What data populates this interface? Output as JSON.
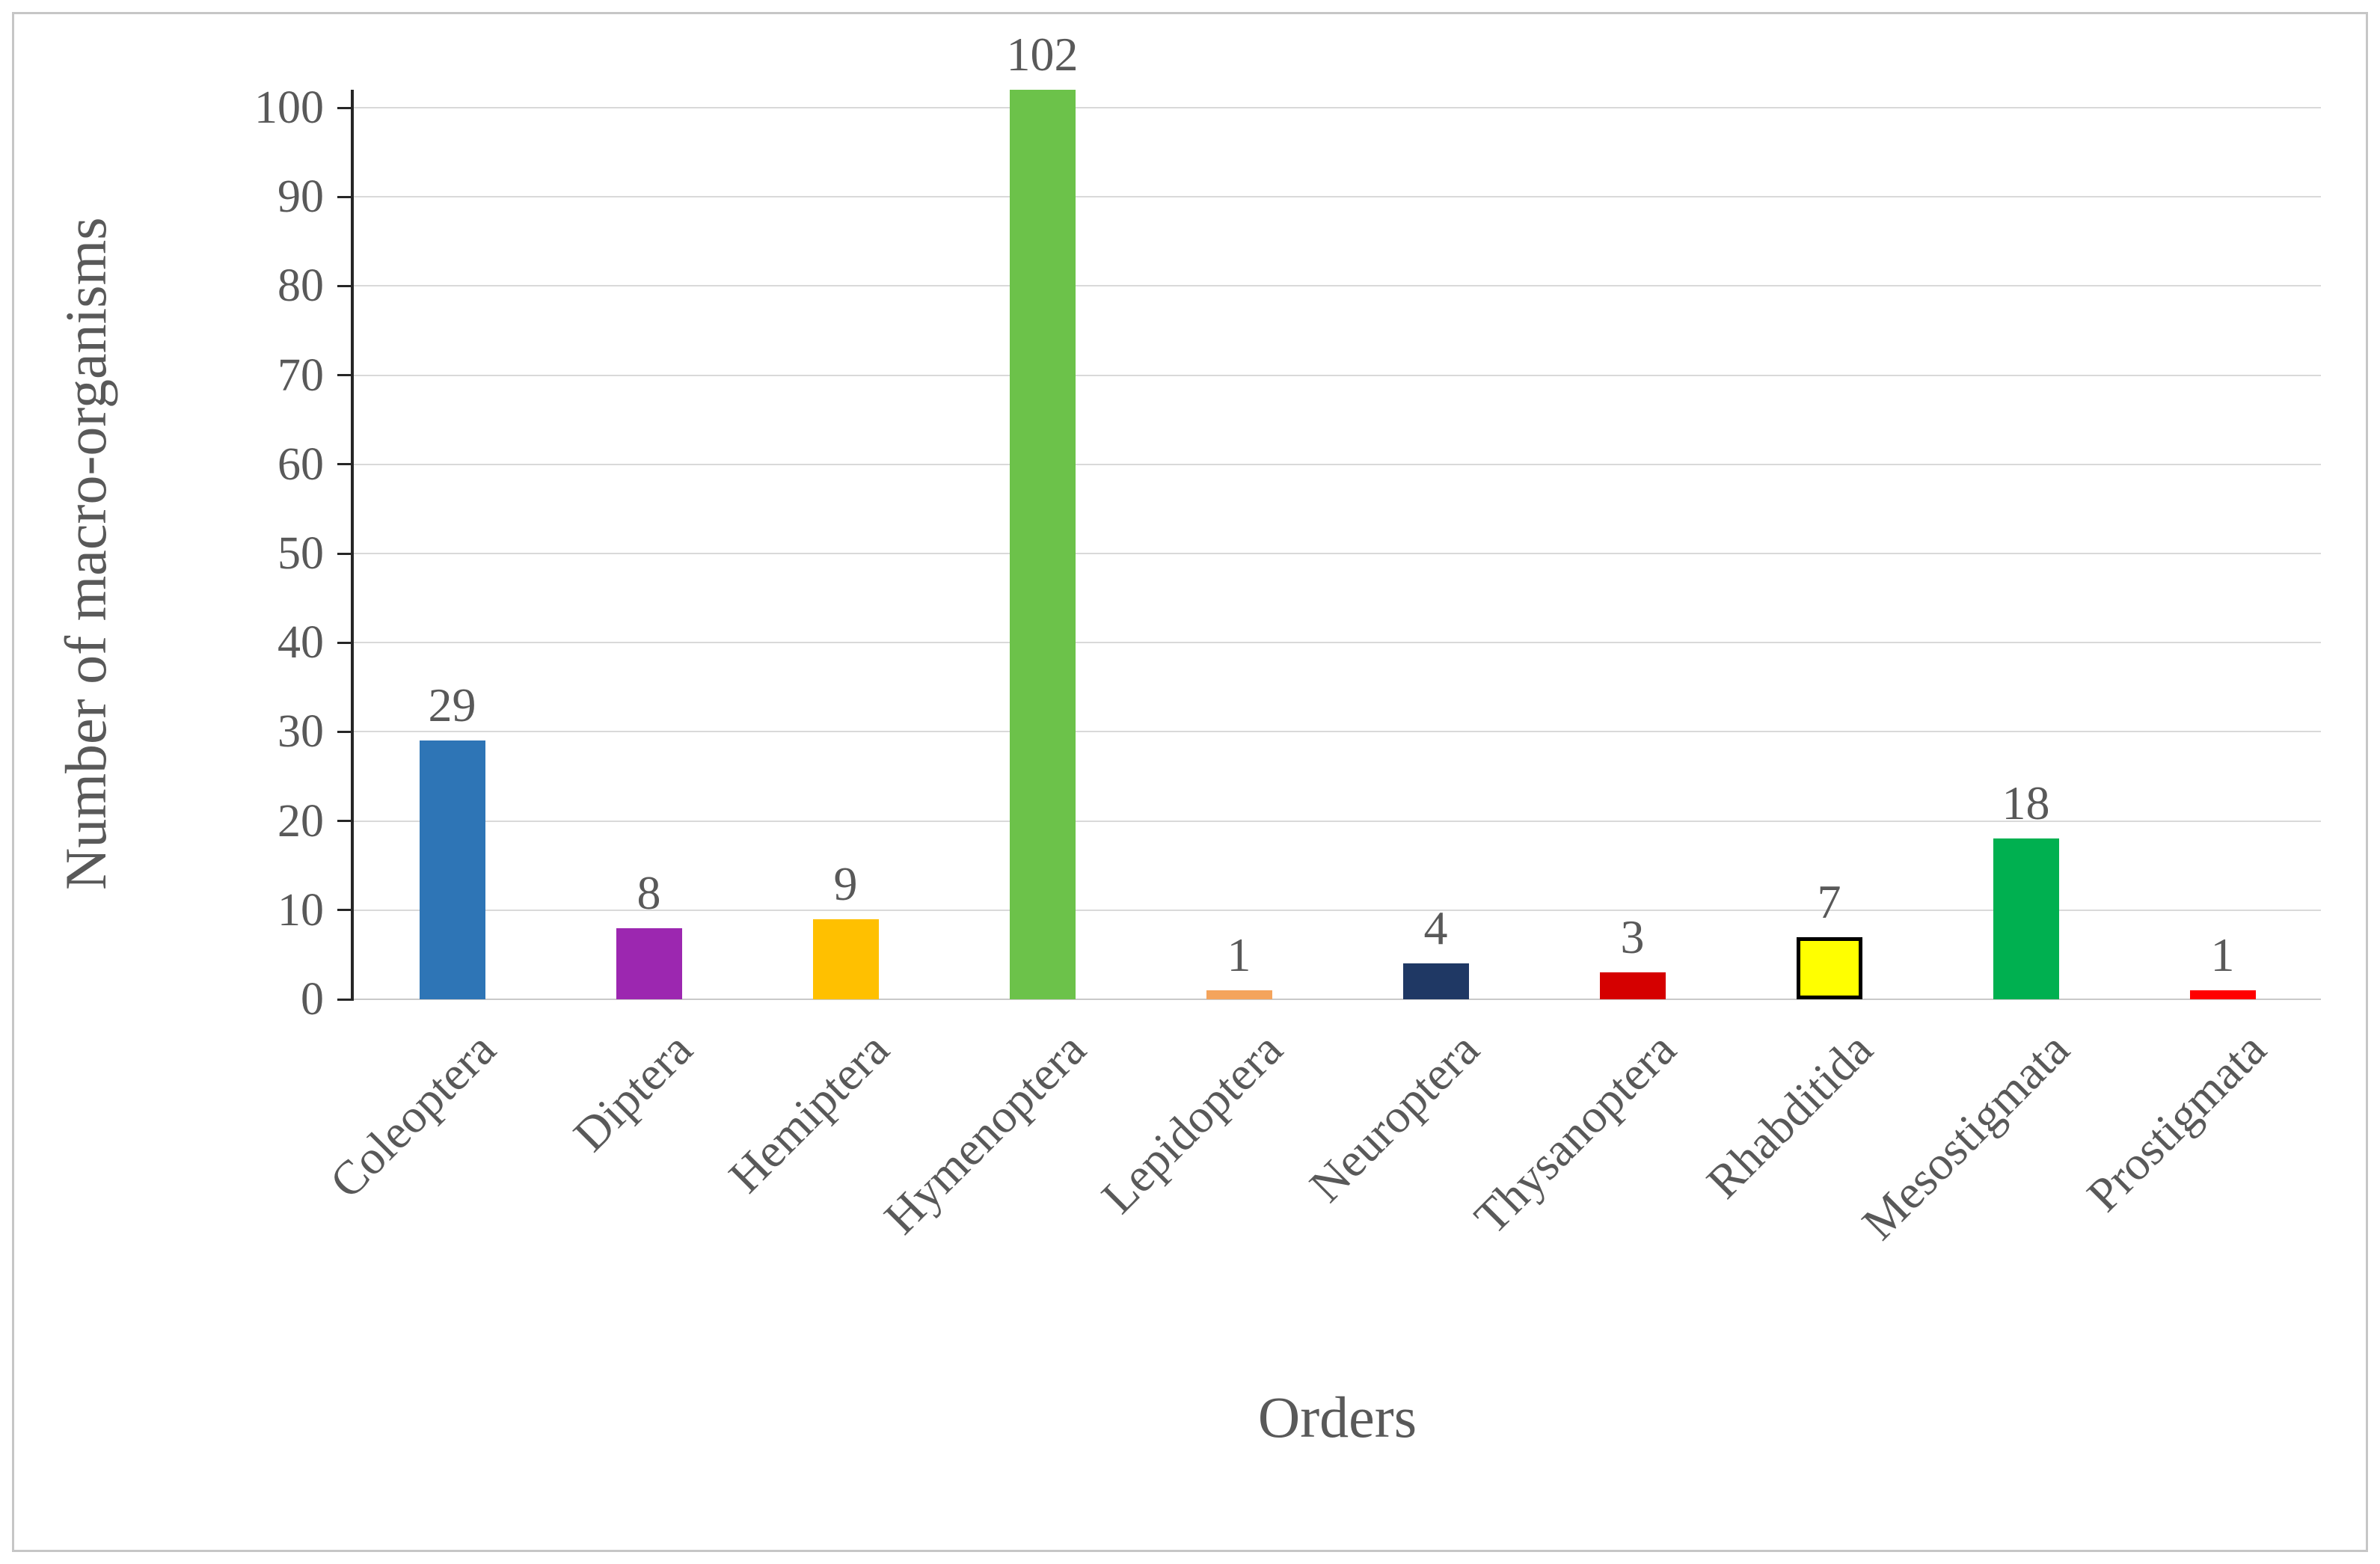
{
  "figure": {
    "background": "#ffffff",
    "frame_border_color": "#c6c6c6"
  },
  "chart_data": {
    "type": "bar",
    "title": "",
    "xlabel": "Orders",
    "ylabel": "Number of macro-organisms",
    "categories": [
      "Coleoptera",
      "Diptera",
      "Hemiptera",
      "Hymenoptera",
      "Lepidoptera",
      "Neuroptera",
      "Thysanoptera",
      "Rhabditida",
      "Mesostigmata",
      "Prostigmata"
    ],
    "values": [
      29,
      8,
      9,
      102,
      1,
      4,
      3,
      7,
      18,
      1
    ],
    "data_labels": [
      "29",
      "8",
      "9",
      "102",
      "1",
      "4",
      "3",
      "7",
      "18",
      "1"
    ],
    "bar_colors": [
      "#2e75b6",
      "#9c27b0",
      "#ffc000",
      "#6cc24a",
      "#f4a45c",
      "#1f3864",
      "#d50000",
      "#ffff00",
      "#00b050",
      "#ff0000"
    ],
    "bar_border_colors": [
      "none",
      "none",
      "none",
      "none",
      "none",
      "none",
      "none",
      "#000000",
      "none",
      "none"
    ],
    "ylim": [
      0,
      100
    ],
    "yticks": [
      0,
      10,
      20,
      30,
      40,
      50,
      60,
      70,
      80,
      90,
      100
    ],
    "grid": true,
    "gridline_color": "#d9d9d9",
    "axis_line_color": "#262626",
    "baseline_color": "#c9c9c9",
    "text_color": "#595959",
    "legend": "none"
  }
}
